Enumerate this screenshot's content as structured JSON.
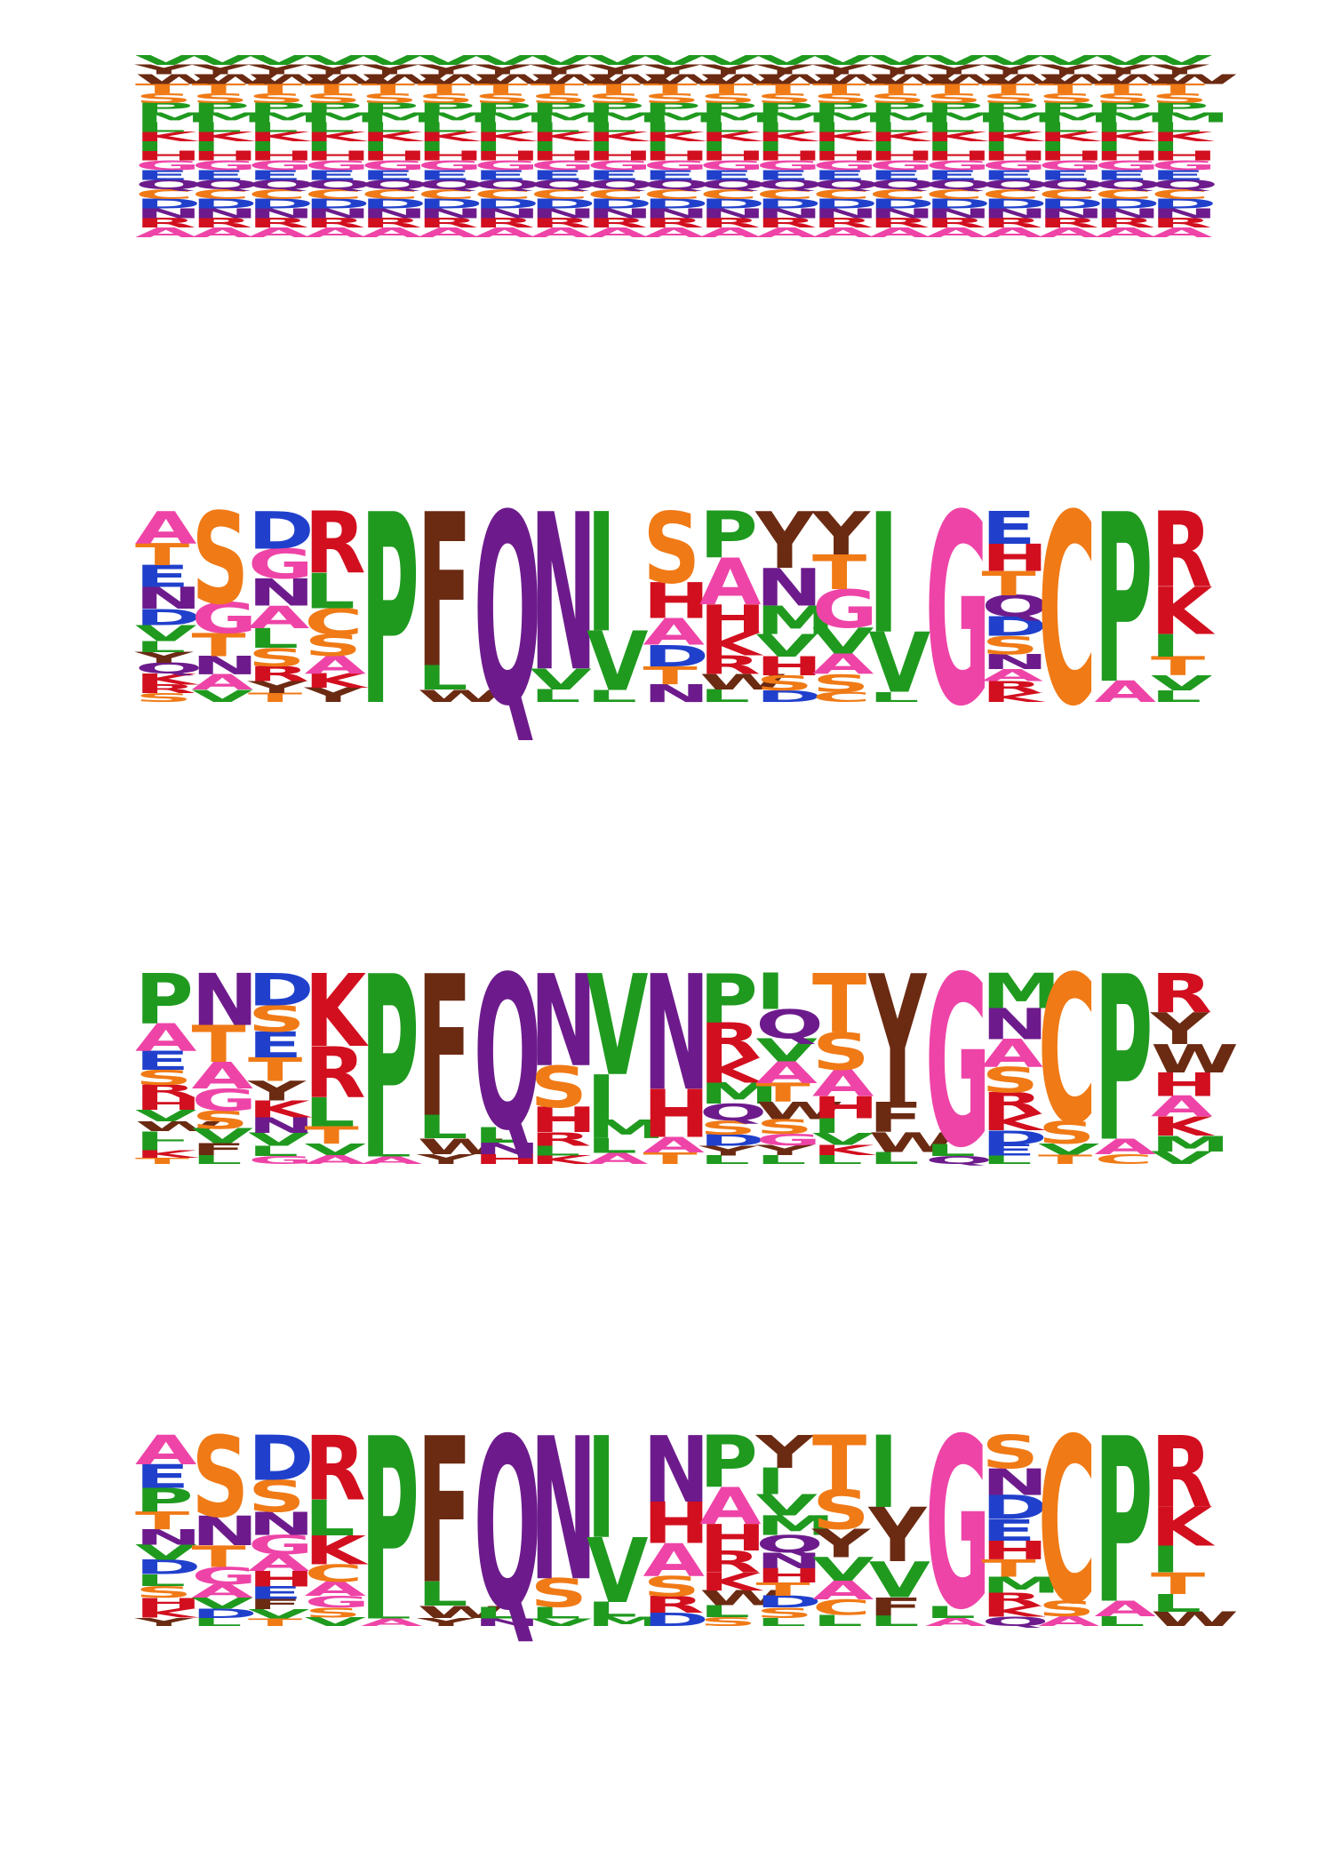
{
  "colors": {
    "A": "#ee44a7",
    "R": "#d20f1f",
    "N": "#6d1b8c",
    "D": "#2040cc",
    "C": "#f07a16",
    "Q": "#6d1b8c",
    "E": "#2040cc",
    "G": "#ee44a7",
    "H": "#d20f1f",
    "I": "#1f9a1f",
    "L": "#1f9a1f",
    "K": "#d20f1f",
    "M": "#1f9a1f",
    "F": "#6b2a12",
    "P": "#1f9a1f",
    "S": "#f07a16",
    "T": "#f07a16",
    "W": "#6b2a12",
    "Y": "#6b2a12",
    "V": "#1f9a1f"
  },
  "logos": [
    {
      "name": "logo-uniform",
      "columns": [
        "VYWTSPMLKIHGEQCDNRA",
        "VYWTSPMLKIHGEQCDNRA",
        "VYWTSPMLKIHGEQCDNRA",
        "VYWTSPMLKIHGEQCDNRA",
        "VYWTSPMLKIHGEQCDNRA",
        "VYWTSPMLKIHGEQCDNRA",
        "VYWTSPMLKIHGEQCDNRA",
        "VYWTSPMLKIHGEQCDNRA",
        "VYWTSPMLKIHGEQCDNRA",
        "VYWTSPMLKIHGEQCDNRA",
        "VYWTSPMLKIHGEQCDNRA",
        "VYWTSPMLKIHGEQCDNRA",
        "VYWTSPMLKIHGEQCDNRA",
        "VYWTSPMLKIHGEQCDNRA",
        "VYWTSPMLKIHGEQCDNRA",
        "VYWTSPMLKIHGEQCDNRA",
        "VYWTSPMLKIHGEQCDNRA",
        "VYWTSPMLKIHGEQCDNRA",
        "VYWTSPMLKIHGEQCDNRA"
      ]
    },
    {
      "name": "logo-2",
      "columns": [
        "ATENDVLYQKRS",
        "SGTNAV",
        "DGNALSRYT",
        "RLCSAKY",
        "P",
        "FLW",
        "Q",
        "NVL",
        "IVL",
        "SHADTN",
        "PAHKRWL",
        "YNMVHSD",
        "YTGVASC",
        "IVL",
        "G",
        "EHTQDSNARK",
        "C",
        "PA",
        "RKITVL"
      ],
      "weights": [
        [
          3,
          2,
          2,
          2,
          1.5,
          1.5,
          1,
          1,
          1,
          1,
          0.8,
          0.8
        ],
        [
          6,
          2,
          1.5,
          1.2,
          1,
          0.8
        ],
        [
          2.5,
          2,
          1.8,
          1.5,
          1.3,
          1.2,
          1,
          0.8,
          0.6
        ],
        [
          3.5,
          2,
          1.5,
          1.2,
          1,
          0.8,
          0.8
        ],
        [
          9
        ],
        [
          7.5,
          1.2,
          0.6
        ],
        [
          9
        ],
        [
          7.5,
          1,
          0.6
        ],
        [
          6,
          3,
          0.6
        ],
        [
          4,
          2,
          1.5,
          1.2,
          1,
          1
        ],
        [
          3,
          3,
          1.8,
          1.5,
          1.2,
          1,
          0.8
        ],
        [
          3,
          2,
          1.5,
          1.2,
          1,
          0.8,
          0.6
        ],
        [
          2.5,
          2,
          2.2,
          1.5,
          1.2,
          1,
          0.6
        ],
        [
          6,
          3,
          0.5
        ],
        [
          9
        ],
        [
          2.2,
          1.8,
          1.6,
          1.4,
          1.3,
          1.2,
          1,
          0.8,
          0.8,
          0.6
        ],
        [
          9
        ],
        [
          8,
          1
        ],
        [
          4,
          2.5,
          1.2,
          1,
          0.8,
          0.6
        ]
      ]
    },
    {
      "name": "logo-3",
      "columns": [
        "PAESRHVWLIKT",
        "NTAGSVFL",
        "DSETYKNVLG",
        "KRLTVA",
        "PLA",
        "FLWY",
        "QLNH",
        "NSHRLK",
        "VIMLA",
        "NHAT",
        "PRKMQSDYL",
        "IQVATWSGYL",
        "TSAHIVKL",
        "YFWL",
        "GLQ",
        "MNASRKDEL",
        "CSVT",
        "PAC",
        "RYWHAKMV"
      ],
      "weights": [
        [
          4,
          2.2,
          1.5,
          1.2,
          1,
          1,
          0.9,
          0.8,
          0.8,
          0.7,
          0.6,
          0.5
        ],
        [
          3.5,
          2.5,
          1.8,
          1.5,
          1.2,
          1,
          0.8,
          0.6
        ],
        [
          2.5,
          2,
          2,
          1.8,
          1.5,
          1.3,
          1.2,
          1,
          0.8,
          0.6
        ],
        [
          5,
          3.5,
          2,
          1.2,
          0.8,
          0.6
        ],
        [
          9,
          0.6,
          0.4
        ],
        [
          7.2,
          1.2,
          0.8,
          0.5
        ],
        [
          8,
          0.8,
          0.6,
          0.5
        ],
        [
          5.5,
          2.5,
          1.5,
          0.8,
          0.6,
          0.5
        ],
        [
          5.5,
          2.5,
          1,
          0.8,
          0.6
        ],
        [
          6,
          2.5,
          0.8,
          0.6
        ],
        [
          3.5,
          2.5,
          1.8,
          1.5,
          1.2,
          1,
          0.8,
          0.7,
          0.6
        ],
        [
          2.5,
          2,
          1.6,
          1.5,
          1.3,
          1.2,
          1,
          0.8,
          0.7,
          0.6
        ],
        [
          4,
          2.5,
          1.8,
          1.5,
          1,
          0.8,
          0.7,
          0.6
        ],
        [
          6.5,
          1.5,
          1,
          0.6
        ],
        [
          8.5,
          0.6,
          0.4
        ],
        [
          2.5,
          2.2,
          2,
          1.8,
          1.5,
          1.2,
          1,
          0.8,
          0.6
        ],
        [
          8,
          1.2,
          0.6,
          0.5
        ],
        [
          8.5,
          0.8,
          0.5
        ],
        [
          2.5,
          2,
          1.8,
          1.5,
          1.3,
          1.2,
          1,
          0.8
        ]
      ]
    },
    {
      "name": "logo-4",
      "columns": [
        "AEPTNVDLSHKY",
        "SNTGAVDL",
        "DSNGAHEFVT",
        "RLKCAGSV",
        "PLA",
        "FLWY",
        "QLN",
        "NSLV",
        "IVLM",
        "NHASRD",
        "PAHRKWLS",
        "YIVMQNHTDSL",
        "TSYVACL",
        "IYVFL",
        "GLA",
        "SNDEHTMRKQ",
        "CSA",
        "PAL",
        "RKITLW"
      ],
      "weights": [
        [
          2.5,
          2,
          2,
          1.5,
          1.3,
          1.3,
          1.2,
          1,
          1,
          0.9,
          0.8,
          0.7
        ],
        [
          6,
          2.2,
          1.6,
          1.3,
          1,
          0.8,
          0.7,
          0.6
        ],
        [
          3.5,
          2.5,
          1.8,
          1.5,
          1.3,
          1.2,
          1,
          0.8,
          0.7,
          0.6
        ],
        [
          4.5,
          2.5,
          2,
          1.2,
          1,
          0.8,
          0.7,
          0.6
        ],
        [
          9,
          0.5,
          0.4
        ],
        [
          7.2,
          1.2,
          0.6,
          0.4
        ],
        [
          9,
          0.6,
          0.4
        ],
        [
          7.5,
          1.5,
          0.6,
          0.4
        ],
        [
          5.5,
          3.5,
          0.8,
          0.5
        ],
        [
          4,
          2.5,
          2,
          1.2,
          1,
          0.8
        ],
        [
          3.5,
          2.5,
          1.8,
          1.5,
          1.2,
          1,
          0.8,
          0.6
        ],
        [
          2.5,
          2,
          1.6,
          1.5,
          1.3,
          1.2,
          1.1,
          1,
          0.9,
          0.8,
          0.6
        ],
        [
          3.5,
          2.5,
          1.8,
          1.5,
          1.2,
          1,
          0.7
        ],
        [
          4,
          3,
          2,
          1,
          0.6
        ],
        [
          8.5,
          0.6,
          0.4
        ],
        [
          2.5,
          2,
          1.8,
          1.6,
          1.4,
          1.3,
          1.2,
          1,
          0.8,
          0.7
        ],
        [
          8.5,
          0.8,
          0.5
        ],
        [
          8.5,
          0.8,
          0.5
        ],
        [
          4,
          2.2,
          1.5,
          1.2,
          1,
          0.8
        ]
      ]
    }
  ]
}
